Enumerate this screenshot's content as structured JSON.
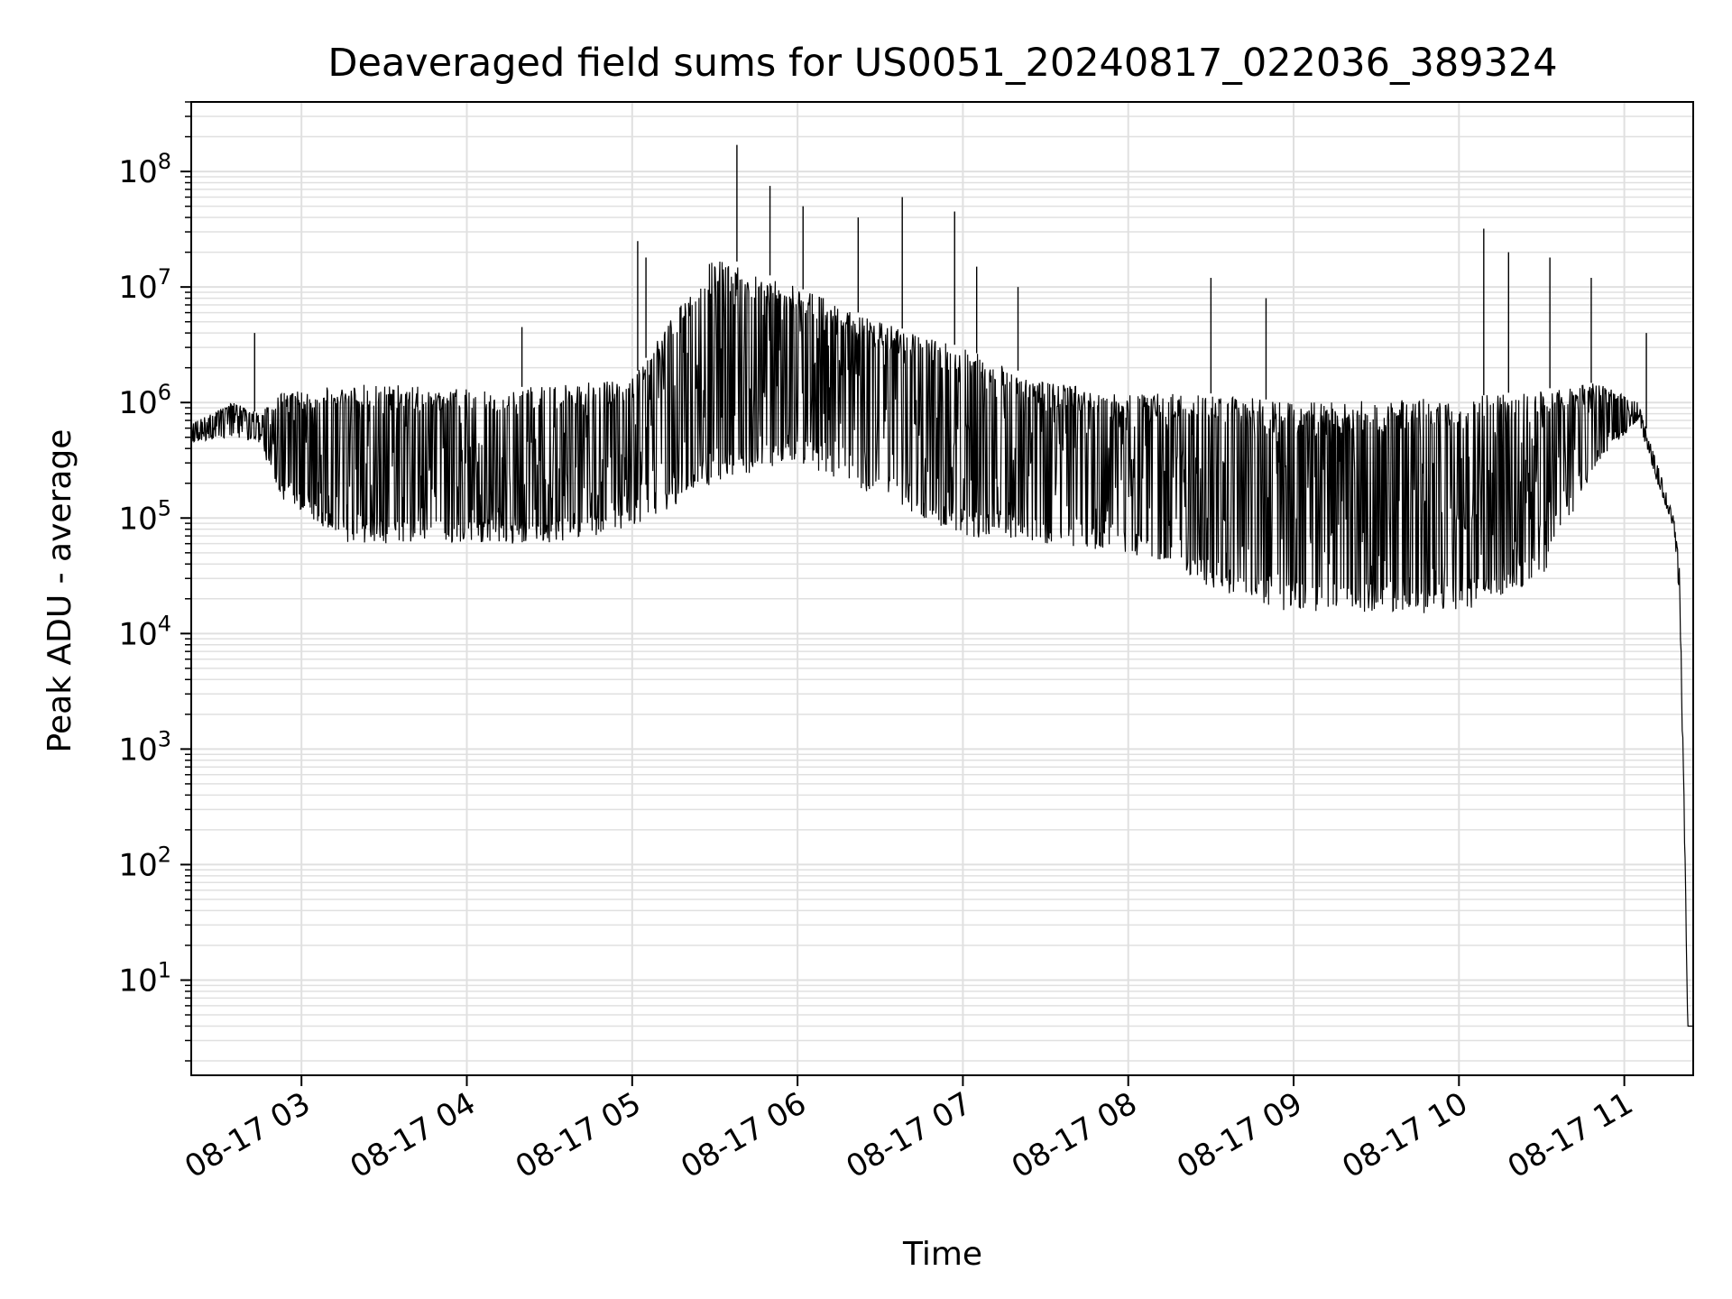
{
  "chart_data": {
    "type": "line",
    "title": "Deaveraged field sums for US0051_20240817_022036_389324",
    "xlabel": "Time",
    "ylabel": "Peak ADU - average",
    "yscale": "log",
    "xlim": [
      "08-17 02:20",
      "08-17 11:25"
    ],
    "ylim": [
      1.5,
      400000000
    ],
    "grid": true,
    "line_color": "#000000",
    "grid_color": "#e0e0e0",
    "x_ticks": [
      {
        "value": "08-17 03:00",
        "label": "08-17 03"
      },
      {
        "value": "08-17 04:00",
        "label": "08-17 04"
      },
      {
        "value": "08-17 05:00",
        "label": "08-17 05"
      },
      {
        "value": "08-17 06:00",
        "label": "08-17 06"
      },
      {
        "value": "08-17 07:00",
        "label": "08-17 07"
      },
      {
        "value": "08-17 08:00",
        "label": "08-17 08"
      },
      {
        "value": "08-17 09:00",
        "label": "08-17 09"
      },
      {
        "value": "08-17 10:00",
        "label": "08-17 10"
      },
      {
        "value": "08-17 11:00",
        "label": "08-17 11"
      }
    ],
    "y_ticks": [
      {
        "value": 10,
        "base": "10",
        "exp": "1"
      },
      {
        "value": 100,
        "base": "10",
        "exp": "2"
      },
      {
        "value": 1000,
        "base": "10",
        "exp": "3"
      },
      {
        "value": 10000,
        "base": "10",
        "exp": "4"
      },
      {
        "value": 100000,
        "base": "10",
        "exp": "5"
      },
      {
        "value": 1000000,
        "base": "10",
        "exp": "6"
      },
      {
        "value": 10000000,
        "base": "10",
        "exp": "7"
      },
      {
        "value": 100000000,
        "base": "10",
        "exp": "8"
      }
    ],
    "series": [
      {
        "envelope": [
          {
            "t": "08-17 02:20",
            "top": 650000,
            "bottom": 450000
          },
          {
            "t": "08-17 02:35",
            "top": 1000000,
            "bottom": 500000
          },
          {
            "t": "08-17 02:45",
            "top": 800000,
            "bottom": 450000
          },
          {
            "t": "08-17 02:52",
            "top": 1200000,
            "bottom": 150000
          },
          {
            "t": "08-17 03:15",
            "top": 1500000,
            "bottom": 60000
          },
          {
            "t": "08-17 04:00",
            "top": 1300000,
            "bottom": 60000
          },
          {
            "t": "08-17 04:30",
            "top": 1400000,
            "bottom": 60000
          },
          {
            "t": "08-17 05:00",
            "top": 1600000,
            "bottom": 80000
          },
          {
            "t": "08-17 05:30",
            "top": 20000000,
            "bottom": 200000
          },
          {
            "t": "08-17 06:00",
            "top": 10000000,
            "bottom": 300000
          },
          {
            "t": "08-17 06:30",
            "top": 5000000,
            "bottom": 150000
          },
          {
            "t": "08-17 07:00",
            "top": 3000000,
            "bottom": 70000
          },
          {
            "t": "08-17 07:30",
            "top": 1500000,
            "bottom": 60000
          },
          {
            "t": "08-17 08:00",
            "top": 1200000,
            "bottom": 50000
          },
          {
            "t": "08-17 08:30",
            "top": 1200000,
            "bottom": 25000
          },
          {
            "t": "08-17 09:00",
            "top": 1000000,
            "bottom": 15000
          },
          {
            "t": "08-17 10:00",
            "top": 1100000,
            "bottom": 15000
          },
          {
            "t": "08-17 10:30",
            "top": 1300000,
            "bottom": 30000
          },
          {
            "t": "08-17 10:50",
            "top": 1500000,
            "bottom": 300000
          },
          {
            "t": "08-17 11:05",
            "top": 1000000,
            "bottom": 700000
          },
          {
            "t": "08-17 11:12",
            "top": 300000,
            "bottom": 200000
          },
          {
            "t": "08-17 11:18",
            "top": 100000,
            "bottom": 80000
          },
          {
            "t": "08-17 11:20",
            "top": 40000,
            "bottom": 20000
          },
          {
            "t": "08-17 11:22",
            "top": 150,
            "bottom": 100
          },
          {
            "t": "08-17 11:23",
            "top": 4,
            "bottom": 4
          },
          {
            "t": "08-17 11:25",
            "top": 4,
            "bottom": 4
          }
        ],
        "peaks": [
          {
            "t": "08-17 02:43",
            "y": 4000000
          },
          {
            "t": "08-17 04:20",
            "y": 4500000
          },
          {
            "t": "08-17 05:02",
            "y": 25000000
          },
          {
            "t": "08-17 05:05",
            "y": 18000000
          },
          {
            "t": "08-17 05:38",
            "y": 170000000
          },
          {
            "t": "08-17 05:50",
            "y": 75000000
          },
          {
            "t": "08-17 06:02",
            "y": 50000000
          },
          {
            "t": "08-17 06:22",
            "y": 40000000
          },
          {
            "t": "08-17 06:38",
            "y": 60000000
          },
          {
            "t": "08-17 06:57",
            "y": 45000000
          },
          {
            "t": "08-17 07:05",
            "y": 15000000
          },
          {
            "t": "08-17 07:20",
            "y": 10000000
          },
          {
            "t": "08-17 08:30",
            "y": 12000000
          },
          {
            "t": "08-17 08:50",
            "y": 8000000
          },
          {
            "t": "08-17 10:09",
            "y": 32000000
          },
          {
            "t": "08-17 10:18",
            "y": 20000000
          },
          {
            "t": "08-17 10:33",
            "y": 18000000
          },
          {
            "t": "08-17 10:48",
            "y": 12000000
          },
          {
            "t": "08-17 11:08",
            "y": 4000000
          }
        ]
      }
    ]
  }
}
